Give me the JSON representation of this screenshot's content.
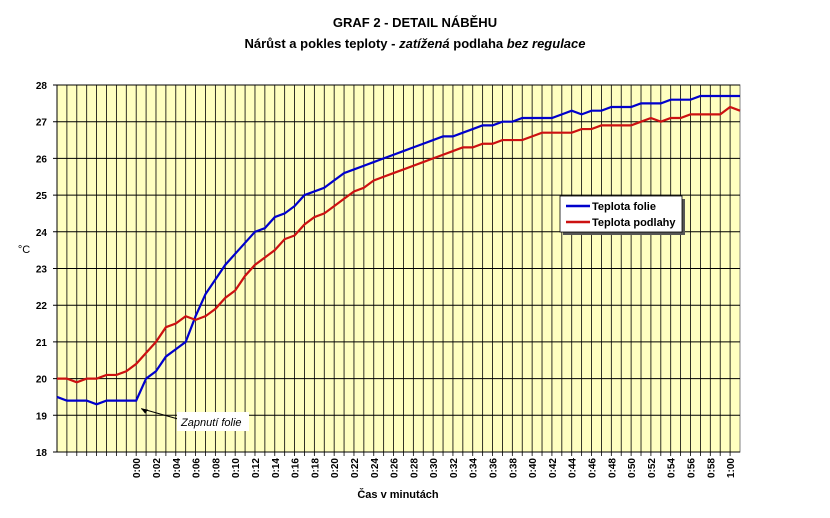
{
  "chart_data": {
    "type": "line",
    "title": "GRAF 2 - DETAIL NÁBĚHU",
    "subtitle_parts": [
      "Nárůst a pokles teploty - ",
      "zatížená",
      " podlaha ",
      "bez",
      " regulace"
    ],
    "xlabel": "Čas v minutách",
    "ylabel": "°C",
    "ylim": [
      18,
      28
    ],
    "yticks": [
      18,
      19,
      20,
      21,
      22,
      23,
      24,
      25,
      26,
      27,
      28
    ],
    "xlim_minutes": [
      -8,
      61
    ],
    "xtick_labels": [
      "0:00",
      "0:02",
      "0:04",
      "0:06",
      "0:08",
      "0:10",
      "0:12",
      "0:14",
      "0:16",
      "0:18",
      "0:20",
      "0:22",
      "0:24",
      "0:26",
      "0:28",
      "0:30",
      "0:32",
      "0:34",
      "0:36",
      "0:38",
      "0:40",
      "0:42",
      "0:44",
      "0:46",
      "0:48",
      "0:50",
      "0:52",
      "0:54",
      "0:56",
      "0:58",
      "1:00"
    ],
    "grid": true,
    "background": "#ffffc0",
    "legend_position": "center-right",
    "annotation": "Zapnutí folie",
    "annotation_x_minutes": 0.5,
    "x_start_minutes": -8,
    "series": [
      {
        "name": "Teplota folie",
        "color": "#0000cc",
        "values": [
          19.5,
          19.4,
          19.4,
          19.4,
          19.3,
          19.4,
          19.4,
          19.4,
          19.4,
          20.0,
          20.2,
          20.6,
          20.8,
          21.0,
          21.7,
          22.3,
          22.7,
          23.1,
          23.4,
          23.7,
          24.0,
          24.1,
          24.4,
          24.5,
          24.7,
          25.0,
          25.1,
          25.2,
          25.4,
          25.6,
          25.7,
          25.8,
          25.9,
          26.0,
          26.1,
          26.2,
          26.3,
          26.4,
          26.5,
          26.6,
          26.6,
          26.7,
          26.8,
          26.9,
          26.9,
          27.0,
          27.0,
          27.1,
          27.1,
          27.1,
          27.1,
          27.2,
          27.3,
          27.2,
          27.3,
          27.3,
          27.4,
          27.4,
          27.4,
          27.5,
          27.5,
          27.5,
          27.6,
          27.6,
          27.6,
          27.7,
          27.7,
          27.7,
          27.7,
          27.7
        ]
      },
      {
        "name": "Teplota podlahy",
        "color": "#cc1111",
        "values": [
          20.0,
          20.0,
          19.9,
          20.0,
          20.0,
          20.1,
          20.1,
          20.2,
          20.4,
          20.7,
          21.0,
          21.4,
          21.5,
          21.7,
          21.6,
          21.7,
          21.9,
          22.2,
          22.4,
          22.8,
          23.1,
          23.3,
          23.5,
          23.8,
          23.9,
          24.2,
          24.4,
          24.5,
          24.7,
          24.9,
          25.1,
          25.2,
          25.4,
          25.5,
          25.6,
          25.7,
          25.8,
          25.9,
          26.0,
          26.1,
          26.2,
          26.3,
          26.3,
          26.4,
          26.4,
          26.5,
          26.5,
          26.5,
          26.6,
          26.7,
          26.7,
          26.7,
          26.7,
          26.8,
          26.8,
          26.9,
          26.9,
          26.9,
          26.9,
          27.0,
          27.1,
          27.0,
          27.1,
          27.1,
          27.2,
          27.2,
          27.2,
          27.2,
          27.4,
          27.3
        ]
      }
    ]
  }
}
